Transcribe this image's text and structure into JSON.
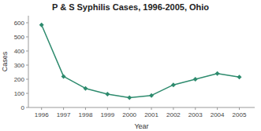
{
  "chart_data": {
    "type": "line",
    "title": "P & S Syphilis Cases, 1996-2005, Ohio",
    "xlabel": "Year",
    "ylabel": "Cases",
    "x": [
      1996,
      1997,
      1998,
      1999,
      2000,
      2001,
      2002,
      2003,
      2004,
      2005
    ],
    "values": [
      585,
      220,
      135,
      95,
      70,
      85,
      160,
      200,
      240,
      215
    ],
    "xlim": [
      1995.4,
      2005.7
    ],
    "xticks": [
      1996,
      1997,
      1998,
      1999,
      2000,
      2001,
      2002,
      2003,
      2004,
      2005
    ],
    "ylim": [
      0,
      650
    ],
    "yticks": [
      0,
      100,
      200,
      300,
      400,
      500,
      600
    ],
    "color": "#2e8b6e",
    "marker": "diamond",
    "grid": false
  }
}
